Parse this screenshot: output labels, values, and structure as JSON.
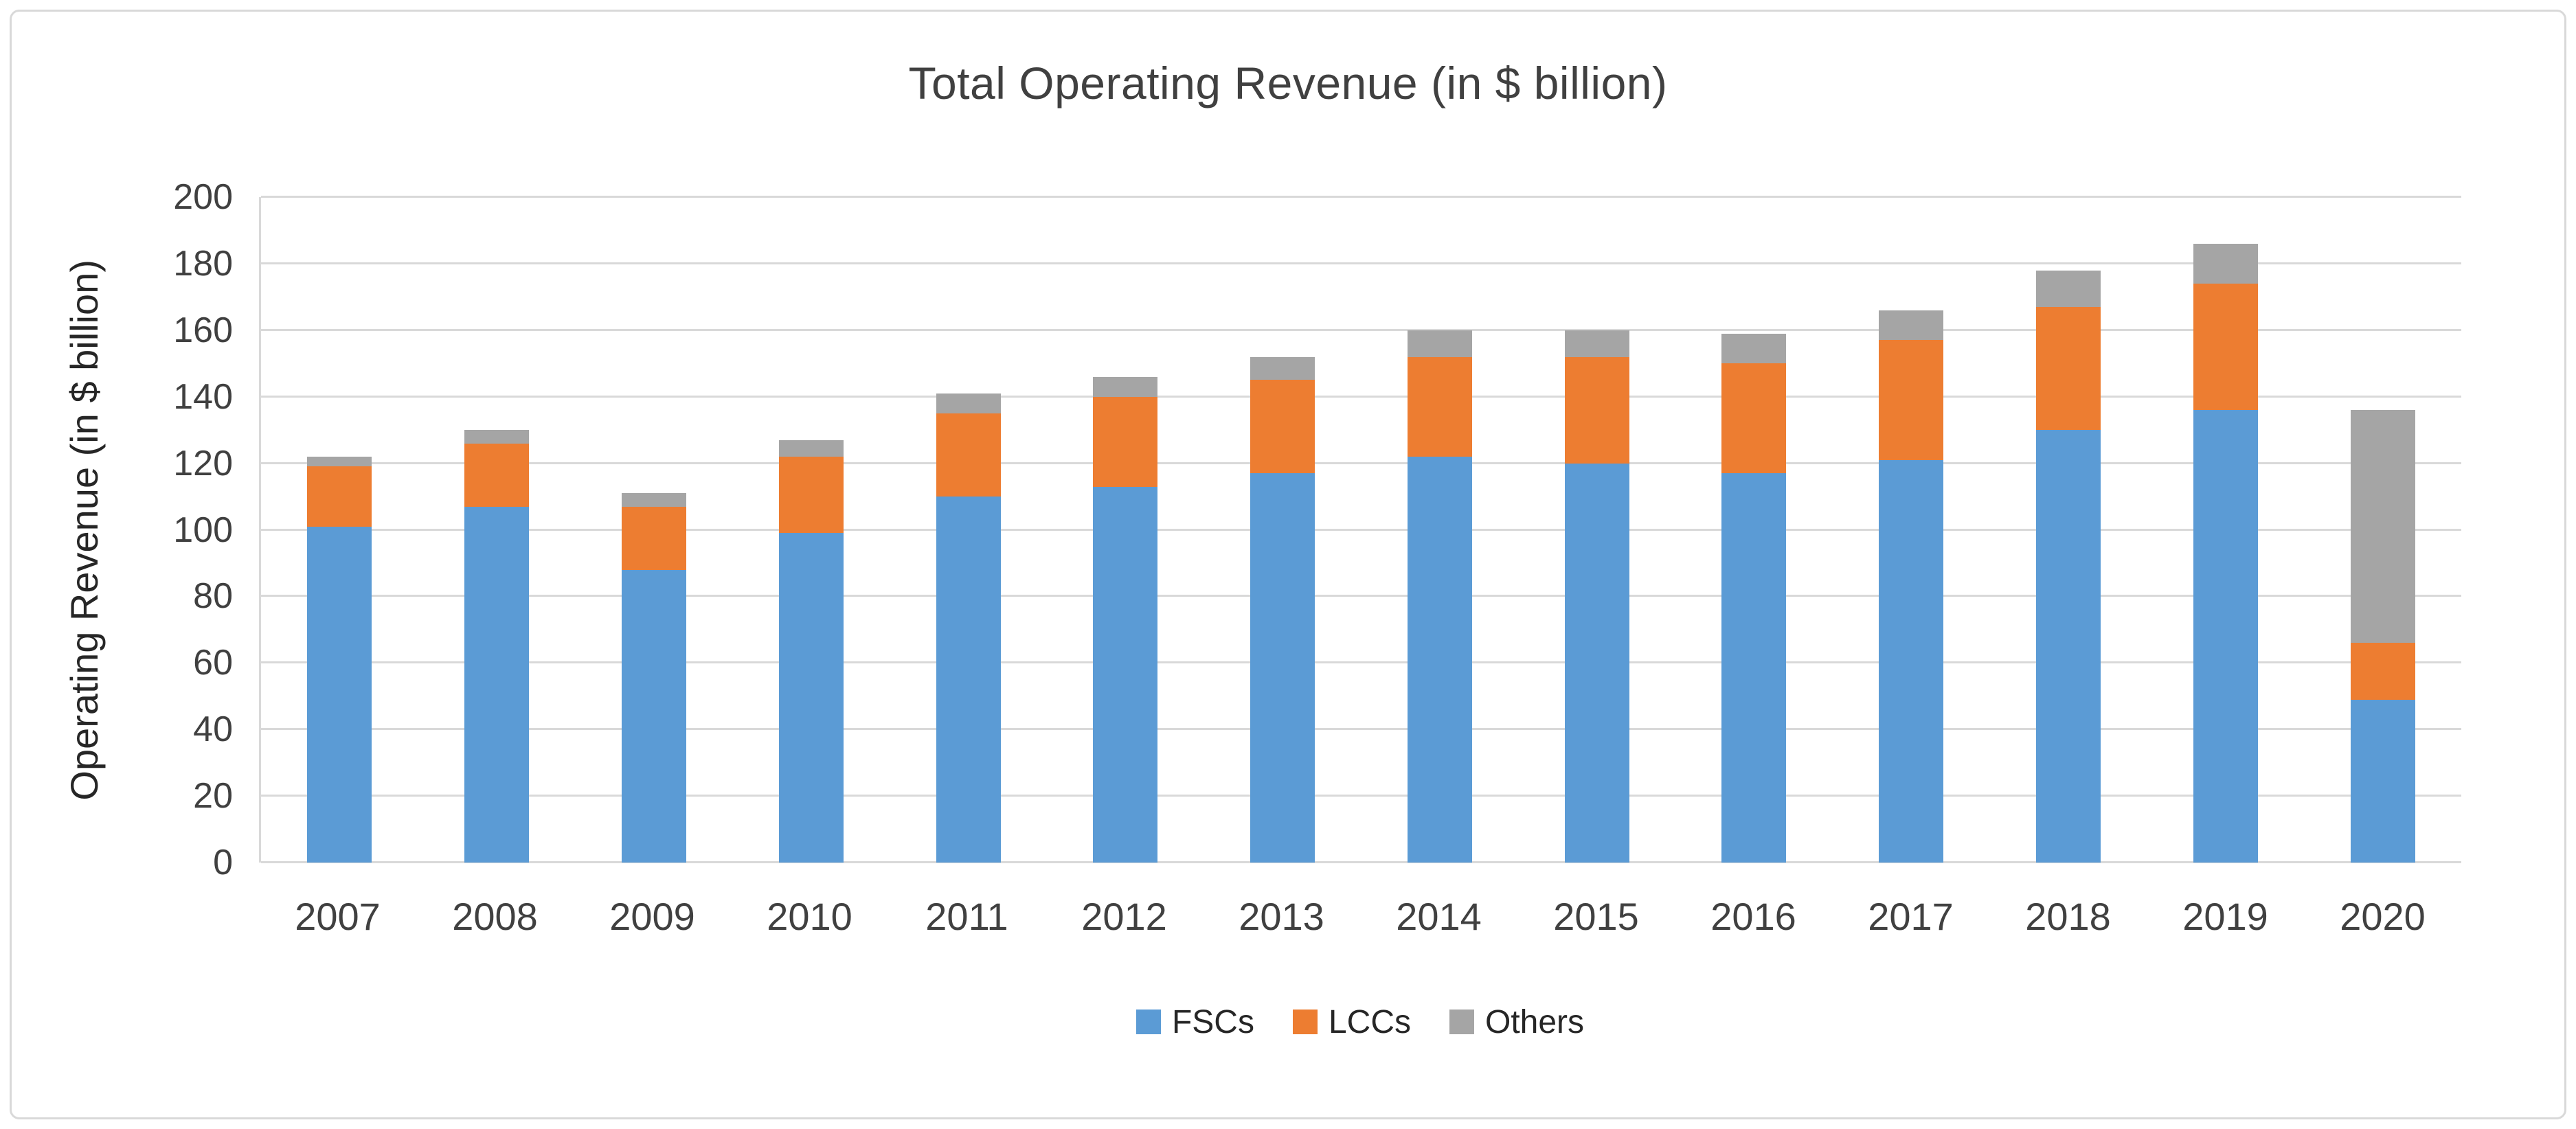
{
  "chart_data": {
    "type": "bar",
    "stacked": true,
    "title": "Total Operating Revenue (in $ billion)",
    "xlabel": "",
    "ylabel": "Operating Revenue (in $ billion)",
    "ylim": [
      0,
      200
    ],
    "ytick_step": 20,
    "yticks": [
      0,
      20,
      40,
      60,
      80,
      100,
      120,
      140,
      160,
      180,
      200
    ],
    "grid": true,
    "legend_position": "bottom",
    "categories": [
      "2007",
      "2008",
      "2009",
      "2010",
      "2011",
      "2012",
      "2013",
      "2014",
      "2015",
      "2016",
      "2017",
      "2018",
      "2019",
      "2020"
    ],
    "series": [
      {
        "name": "FSCs",
        "color": "#5B9BD5",
        "values": [
          101,
          107,
          88,
          99,
          110,
          113,
          117,
          122,
          120,
          117,
          121,
          130,
          136,
          49
        ]
      },
      {
        "name": "LCCs",
        "color": "#ED7D31",
        "values": [
          18,
          19,
          19,
          23,
          25,
          27,
          28,
          30,
          32,
          33,
          36,
          37,
          38,
          17
        ]
      },
      {
        "name": "Others",
        "color": "#A5A5A5",
        "values": [
          3,
          4,
          4,
          5,
          6,
          6,
          7,
          8,
          8,
          9,
          9,
          11,
          12,
          70
        ]
      }
    ]
  },
  "colors": {
    "gridline": "#D9D9D9",
    "border": "#D9D9D9",
    "axis_text": "#404040"
  }
}
